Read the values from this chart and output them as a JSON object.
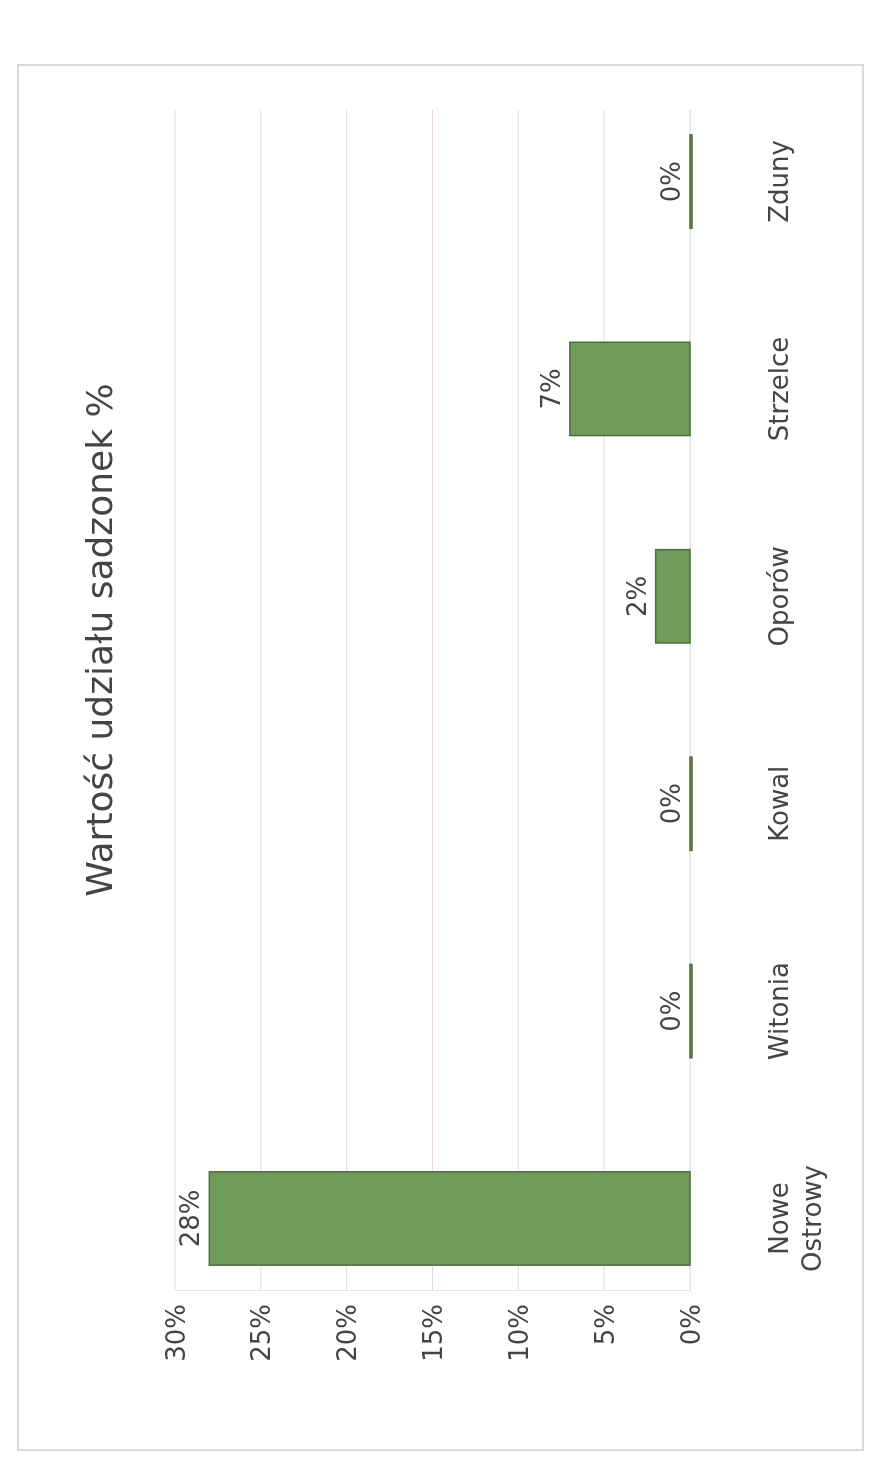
{
  "chart_data": {
    "type": "bar",
    "orientation": "horizontal",
    "title": "Wartość udziału sadzonek %",
    "categories": [
      "Zduny",
      "Strzelce",
      "Oporów",
      "Kowal",
      "Witonia",
      "Nowe Ostrowy"
    ],
    "values": [
      0,
      7,
      2,
      0,
      0,
      28
    ],
    "value_labels": [
      "0%",
      "7%",
      "2%",
      "0%",
      "0%",
      "28%"
    ],
    "color": "#6f9a5a",
    "xlim": [
      30,
      0
    ],
    "xticks": [
      {
        "value": 30,
        "label": "30%"
      },
      {
        "value": 25,
        "label": "25%"
      },
      {
        "value": 20,
        "label": "20%"
      },
      {
        "value": 15,
        "label": "15%"
      },
      {
        "value": 10,
        "label": "10%"
      },
      {
        "value": 5,
        "label": "5%"
      },
      {
        "value": 0,
        "label": "0%"
      }
    ],
    "grid": "x"
  }
}
